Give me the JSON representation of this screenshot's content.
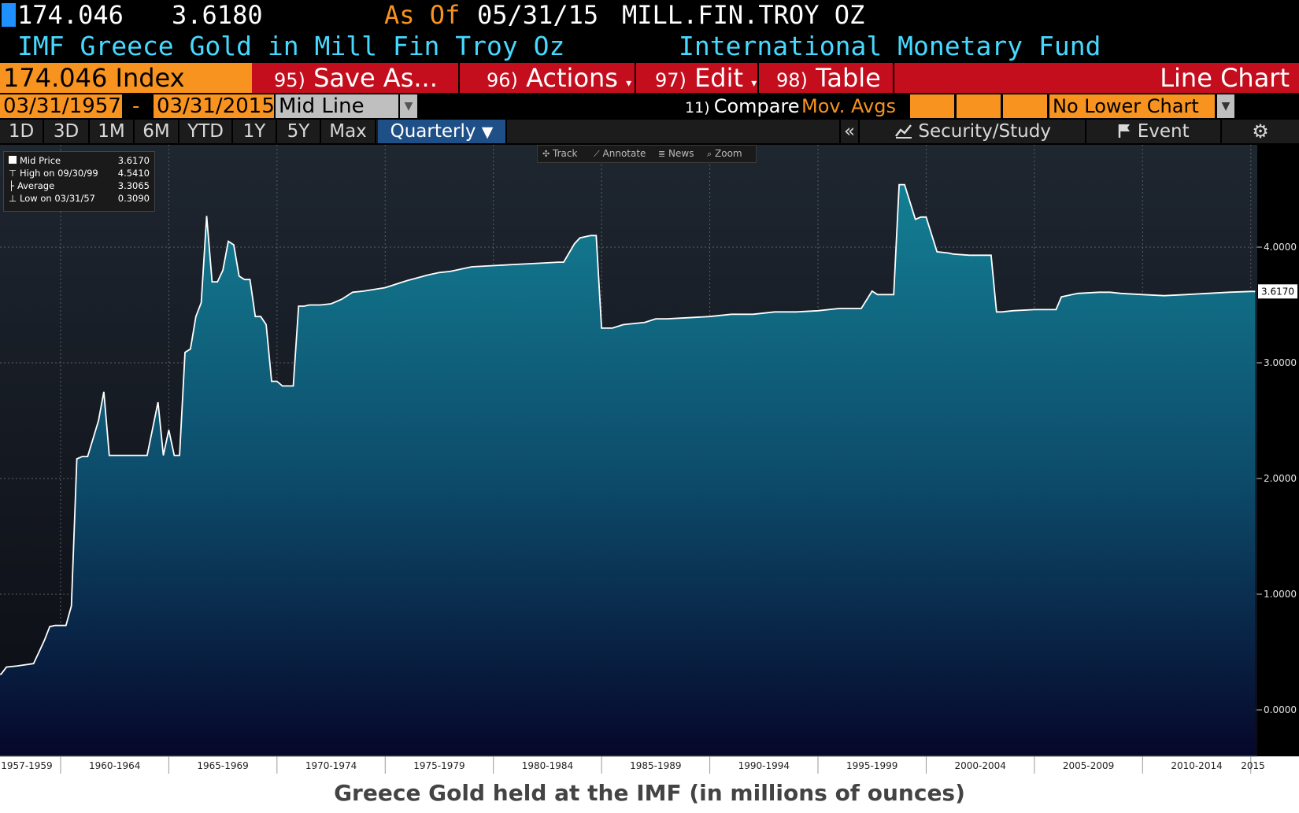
{
  "header": {
    "price": "174.046",
    "value": "3.6180",
    "as_of_label": "As Of",
    "as_of_date": "05/31/15",
    "units": "MILL.FIN.TROY OZ",
    "title": "IMF Greece Gold in Mill Fin Troy Oz",
    "source": "International Monetary Fund"
  },
  "toolbar": {
    "ticker": "174.046 Index",
    "save_num": "95)",
    "save_label": "Save As...",
    "actions_num": "96)",
    "actions_label": "Actions",
    "edit_num": "97)",
    "edit_label": "Edit",
    "table_num": "98)",
    "table_label": "Table",
    "chart_type": "Line Chart"
  },
  "range_bar": {
    "start_date": "03/31/1957",
    "dash": "-",
    "end_date": "03/31/2015",
    "line_type": "Mid Line",
    "compare_num": "11)",
    "compare_label": "Compare",
    "mov_avgs": "Mov. Avgs",
    "lower_chart": "No Lower Chart"
  },
  "period_tabs": [
    "1D",
    "3D",
    "1M",
    "6M",
    "YTD",
    "1Y",
    "5Y",
    "Max"
  ],
  "frequency": "Quarterly",
  "right_tools": {
    "collapse": "«",
    "security_study": "Security/Study",
    "event": "Event"
  },
  "chart_tools": [
    "Track",
    "Annotate",
    "News",
    "Zoom"
  ],
  "legend": [
    {
      "label": "Mid Price",
      "value": "3.6170"
    },
    {
      "label": "High on 09/30/99",
      "value": "4.5410"
    },
    {
      "label": "Average",
      "value": "3.3065"
    },
    {
      "label": "Low on 03/31/57",
      "value": "0.3090"
    }
  ],
  "caption": "Greece Gold held at the IMF (in millions of ounces)",
  "colors": {
    "accent_orange": "#f7931e",
    "red_bar": "#c40d1d",
    "cyan_text": "#46d9ff",
    "area_top": "#137f93",
    "area_bottom": "#06072a",
    "line": "#ffffff"
  },
  "chart_data": {
    "type": "area",
    "ylim": [
      0,
      5
    ],
    "y_ticks": [
      "0.0000",
      "1.0000",
      "2.0000",
      "3.0000",
      "4.0000"
    ],
    "y_tick_values": [
      0,
      1,
      2,
      3,
      4
    ],
    "x_range": [
      1957.2,
      2015.3
    ],
    "x_ticks": [
      {
        "label": "1957-1959",
        "pos": 1958.5
      },
      {
        "label": "1960-1964",
        "pos": 1962.5
      },
      {
        "label": "1965-1969",
        "pos": 1967.5
      },
      {
        "label": "1970-1974",
        "pos": 1972.5
      },
      {
        "label": "1975-1979",
        "pos": 1977.5
      },
      {
        "label": "1980-1984",
        "pos": 1982.5
      },
      {
        "label": "1985-1989",
        "pos": 1987.5
      },
      {
        "label": "1990-1994",
        "pos": 1992.5
      },
      {
        "label": "1995-1999",
        "pos": 1997.5
      },
      {
        "label": "2000-2004",
        "pos": 2002.5
      },
      {
        "label": "2005-2009",
        "pos": 2007.5
      },
      {
        "label": "2010-2014",
        "pos": 2012.5
      },
      {
        "label": "2015",
        "pos": 2015.1
      }
    ],
    "last_value_label": "3.6170",
    "last_value": 3.617,
    "series": [
      {
        "x": [
          1957.25,
          1957.5,
          1958.0,
          1958.75,
          1959.0,
          1959.25,
          1959.5,
          1959.75,
          1960.25,
          1960.5,
          1960.75,
          1961.0,
          1961.25,
          1961.75,
          1962.0,
          1962.25,
          1962.5,
          1962.75,
          1963.0,
          1963.5,
          1964.0,
          1964.5,
          1964.75,
          1965.0,
          1965.25,
          1965.5,
          1965.75,
          1966.0,
          1966.25,
          1966.5,
          1966.75,
          1967.0,
          1967.25,
          1967.5,
          1967.75,
          1968.0,
          1968.25,
          1968.5,
          1968.75,
          1969.0,
          1969.25,
          1969.5,
          1969.75,
          1970.0,
          1970.25,
          1970.5,
          1970.75,
          1971.0,
          1971.25,
          1971.5,
          1971.75,
          1972.0,
          1972.5,
          1973.0,
          1973.5,
          1974.0,
          1975.0,
          1976.0,
          1977.0,
          1977.5,
          1978.0,
          1979.0,
          1980.0,
          1981.0,
          1982.0,
          1983.0,
          1983.25,
          1983.75,
          1984.0,
          1984.5,
          1984.75,
          1985.0,
          1985.5,
          1986.0,
          1987.0,
          1987.5,
          1988.0,
          1989.0,
          1990.0,
          1991.0,
          1992.0,
          1993.0,
          1994.0,
          1995.0,
          1996.0,
          1997.0,
          1997.5,
          1997.75,
          1998.0,
          1998.5,
          1998.75,
          1999.0,
          1999.5,
          1999.75,
          2000.0,
          2000.5,
          2001.0,
          2001.25,
          2002.0,
          2003.0,
          2003.25,
          2003.5,
          2004.0,
          2005.0,
          2006.0,
          2006.25,
          2006.5,
          2007.0,
          2008.0,
          2008.5,
          2009.0,
          2010.0,
          2011.0,
          2012.0,
          2013.0,
          2014.0,
          2015.0,
          2015.2
        ],
        "y": [
          0.309,
          0.37,
          0.38,
          0.4,
          0.5,
          0.6,
          0.72,
          0.73,
          0.73,
          0.9,
          2.17,
          2.19,
          2.19,
          2.5,
          2.75,
          2.2,
          2.2,
          2.2,
          2.2,
          2.2,
          2.2,
          2.66,
          2.2,
          2.42,
          2.2,
          2.2,
          3.09,
          3.12,
          3.4,
          3.52,
          4.27,
          3.7,
          3.7,
          3.8,
          4.05,
          4.02,
          3.75,
          3.72,
          3.72,
          3.4,
          3.4,
          3.33,
          2.84,
          2.84,
          2.8,
          2.8,
          2.8,
          3.49,
          3.49,
          3.5,
          3.5,
          3.5,
          3.51,
          3.55,
          3.61,
          3.62,
          3.65,
          3.71,
          3.76,
          3.78,
          3.79,
          3.83,
          3.84,
          3.85,
          3.86,
          3.87,
          3.87,
          4.03,
          4.08,
          4.1,
          4.1,
          3.3,
          3.3,
          3.33,
          3.35,
          3.38,
          3.38,
          3.39,
          3.4,
          3.42,
          3.42,
          3.44,
          3.44,
          3.45,
          3.47,
          3.47,
          3.62,
          3.59,
          3.59,
          3.59,
          4.54,
          4.54,
          4.24,
          4.26,
          4.26,
          3.96,
          3.95,
          3.94,
          3.93,
          3.93,
          3.44,
          3.44,
          3.45,
          3.46,
          3.46,
          3.57,
          3.58,
          3.6,
          3.61,
          3.61,
          3.6,
          3.59,
          3.58,
          3.59,
          3.6,
          3.61,
          3.617,
          3.617
        ]
      }
    ]
  }
}
